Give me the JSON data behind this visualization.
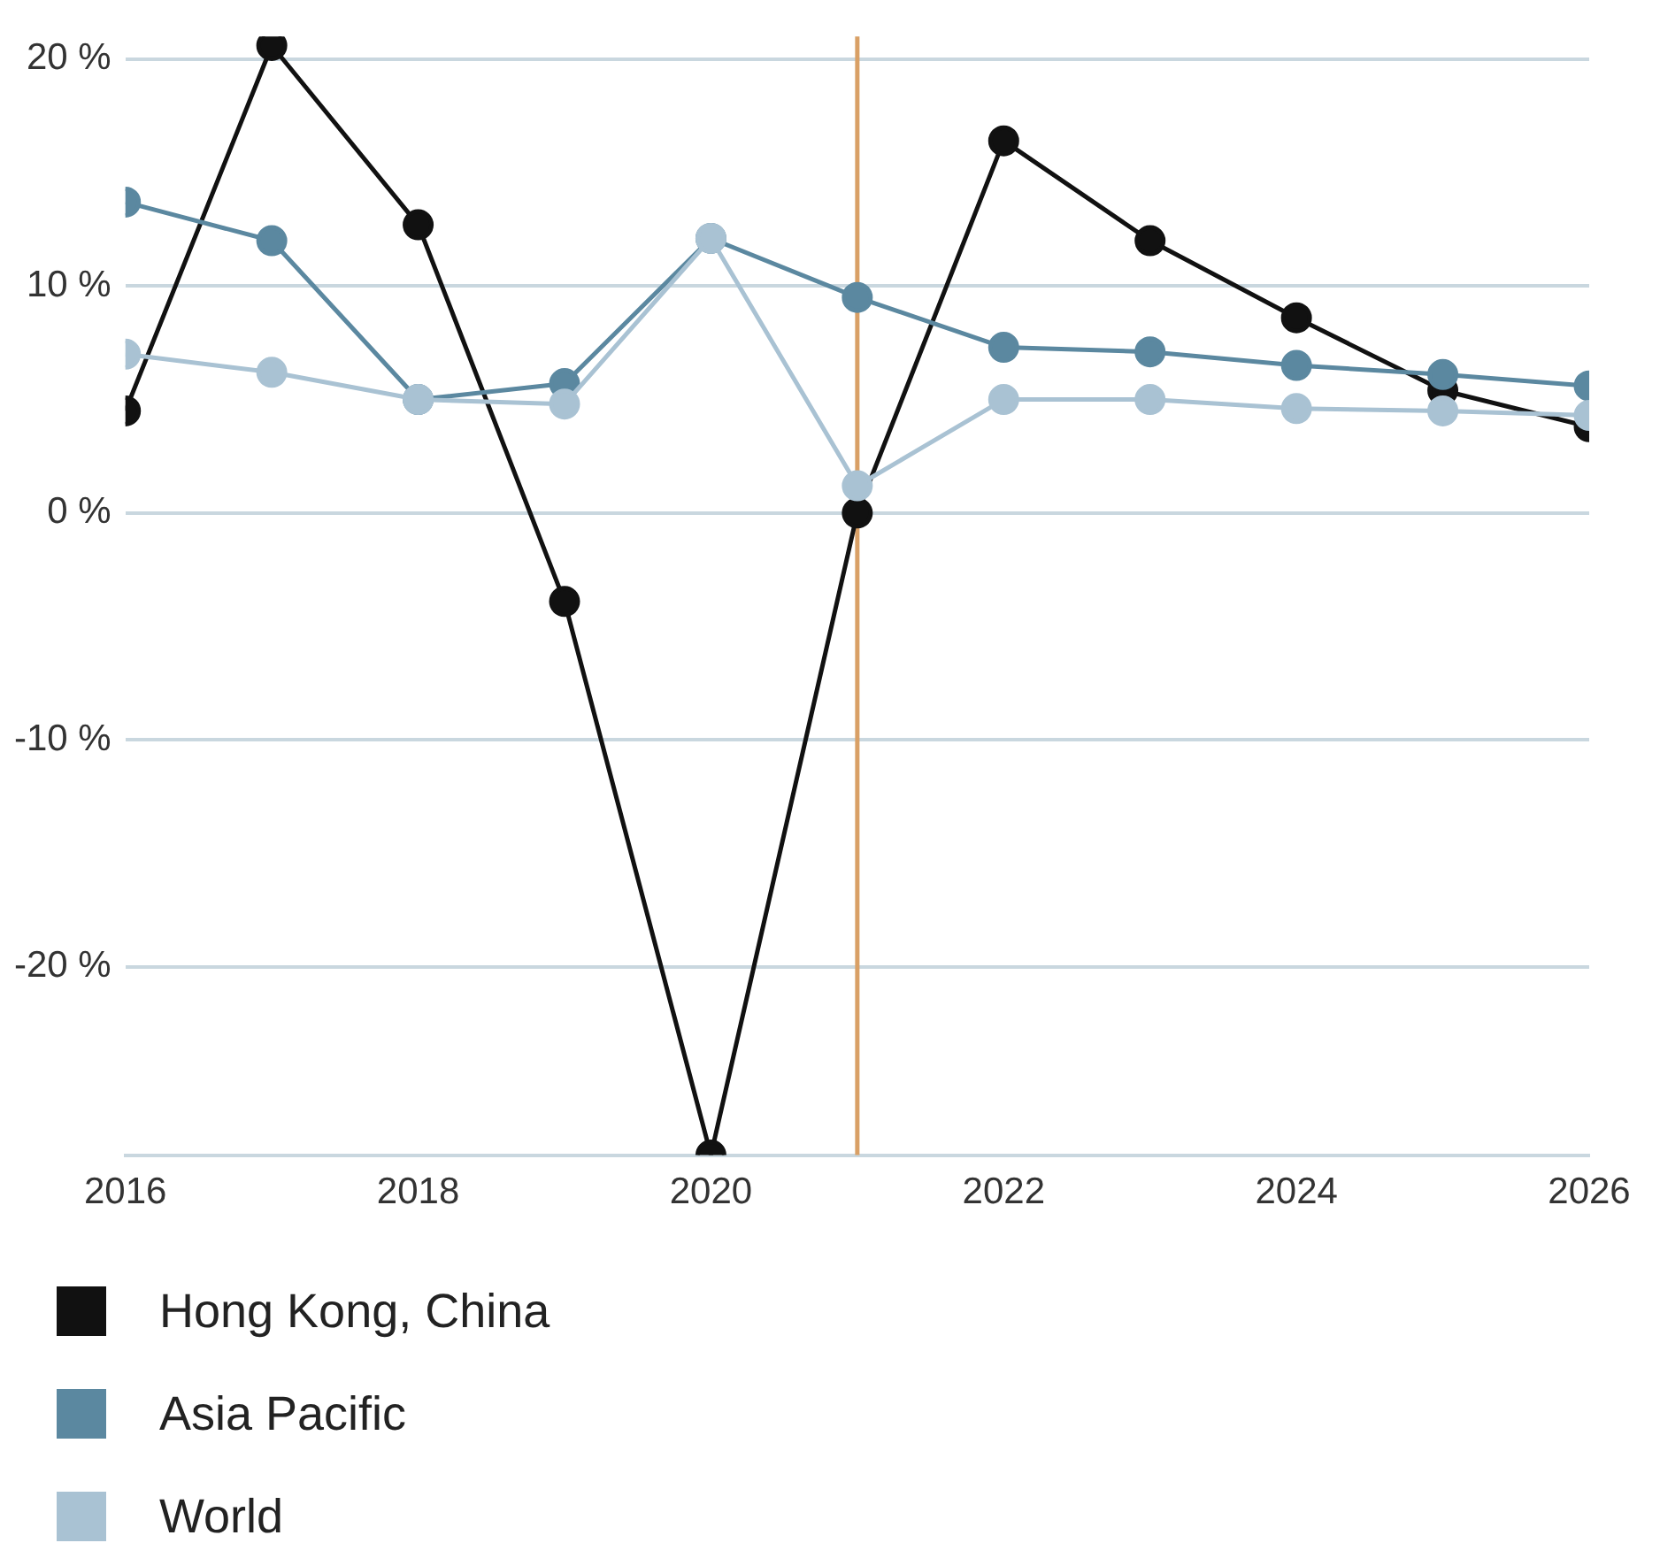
{
  "chart_data": {
    "type": "line",
    "x": [
      2016,
      2017,
      2018,
      2019,
      2020,
      2021,
      2022,
      2023,
      2024,
      2025,
      2026
    ],
    "series": [
      {
        "name": "Hong Kong, China",
        "color": "#111111",
        "values": [
          4.5,
          20.6,
          12.7,
          -3.9,
          -28.3,
          0,
          16.4,
          12.0,
          8.6,
          5.4,
          3.8
        ]
      },
      {
        "name": "Asia Pacific",
        "color": "#5b88a0",
        "values": [
          13.7,
          12.0,
          5.0,
          5.7,
          12.1,
          9.5,
          7.3,
          7.1,
          6.5,
          6.1,
          5.6
        ]
      },
      {
        "name": "World",
        "color": "#a9c2d3",
        "values": [
          7.0,
          6.2,
          5.0,
          4.8,
          12.1,
          1.2,
          5.0,
          5.0,
          4.6,
          4.5,
          4.3
        ]
      }
    ],
    "xlim": [
      2016,
      2026
    ],
    "xticks": [
      2016,
      2018,
      2020,
      2022,
      2024,
      2026
    ],
    "ylim": [
      -28.3,
      21
    ],
    "yticks": [
      {
        "value": -20,
        "label": "-20 %"
      },
      {
        "value": -10,
        "label": "-10 %"
      },
      {
        "value": 0,
        "label": "0 %"
      },
      {
        "value": 10,
        "label": "10 %"
      },
      {
        "value": 20,
        "label": "20 %"
      }
    ],
    "ref_lines": [
      {
        "axis": "x",
        "value": 2021,
        "color": "#d9a066"
      }
    ],
    "grid": "y",
    "legend": "bottom",
    "marker": "circle",
    "line_style": "solid"
  }
}
